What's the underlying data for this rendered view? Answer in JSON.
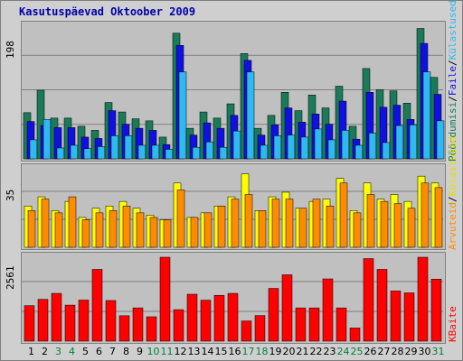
{
  "title": "Kasutuspäevad Oktoober 2009",
  "legend": {
    "sep": "/",
    "kulastused": "Külastused",
    "failid": "Faile",
    "poordumisi": "Pöördumisi",
    "arvuteid": "Arvuteid",
    "kbaite": "KBaite"
  },
  "colors": {
    "poordumisi": "#1a7a5a",
    "failid": "#1010e0",
    "kulastused": "#30b8f0",
    "arvuteid": "#ff8c00",
    "kulastused2": "#ffff00",
    "kbaite": "#ff0000",
    "weekend_label": "#008040",
    "grid": "#808080",
    "panel_bg": "#c0c0c0"
  },
  "chart_data": {
    "type": "bar",
    "categories": [
      "1",
      "2",
      "3",
      "4",
      "5",
      "6",
      "7",
      "8",
      "9",
      "10",
      "11",
      "12",
      "13",
      "14",
      "15",
      "16",
      "17",
      "18",
      "19",
      "20",
      "21",
      "22",
      "23",
      "24",
      "25",
      "26",
      "27",
      "28",
      "29",
      "30",
      "31"
    ],
    "weekend_days": [
      "3",
      "4",
      "10",
      "11",
      "17",
      "18",
      "24",
      "25",
      "31"
    ],
    "panels": [
      {
        "ymax_label": "198",
        "ylim": [
          0,
          198
        ],
        "series": [
          {
            "name": "Pöördumisi",
            "values": [
              68,
              101,
              60,
              60,
              48,
              42,
              83,
              69,
              59,
              56,
              32,
              185,
              45,
              69,
              60,
              81,
              155,
              45,
              64,
              98,
              71,
              94,
              75,
              107,
              48,
              133,
              102,
              100,
              82,
              192,
              120
            ]
          },
          {
            "name": "Faile",
            "values": [
              55,
              49,
              46,
              46,
              32,
              30,
              71,
              51,
              45,
              42,
              21,
              167,
              35,
              53,
              45,
              64,
              145,
              35,
              50,
              75,
              54,
              66,
              51,
              85,
              29,
              98,
              76,
              79,
              58,
              170,
              95
            ]
          },
          {
            "name": "Külastused",
            "values": [
              28,
              58,
              16,
              20,
              15,
              18,
              34,
              34,
              20,
              20,
              14,
              128,
              17,
              25,
              17,
              41,
              128,
              20,
              34,
              35,
              32,
              44,
              28,
              42,
              20,
              38,
              24,
              49,
              50,
              128,
              56
            ]
          }
        ]
      },
      {
        "ymax_label": "35",
        "ylim": [
          0,
          35
        ],
        "series": [
          {
            "name": "Arvuteid",
            "values": [
              16,
              21,
              15,
              22,
              12,
              15,
              16,
              18,
              15,
              13,
              12,
              25,
              13,
              15,
              18,
              21,
              23,
              16,
              21,
              21,
              17,
              21,
              18,
              28,
              15,
              23,
              20,
              19,
              17,
              28,
              26
            ]
          },
          {
            "name": "Külastused",
            "values": [
              18,
              22,
              16,
              20,
              13,
              17,
              18,
              20,
              17,
              14,
              12,
              28,
              13,
              15,
              18,
              22,
              32,
              16,
              22,
              24,
              17,
              20,
              21,
              30,
              16,
              28,
              21,
              23,
              20,
              31,
              28
            ]
          }
        ]
      },
      {
        "ymax_label": "2561",
        "ylim": [
          0,
          2561
        ],
        "series": [
          {
            "name": "KBaite",
            "values": [
              1083,
              1276,
              1458,
              1100,
              1253,
              2190,
              1240,
              775,
              1015,
              744,
              2561,
              961,
              1432,
              1250,
              1398,
              1458,
              617,
              782,
              1610,
              2025,
              1014,
              1014,
              1900,
              1014,
              402,
              2519,
              2190,
              1531,
              1473,
              2561,
              1893
            ]
          }
        ]
      }
    ]
  }
}
